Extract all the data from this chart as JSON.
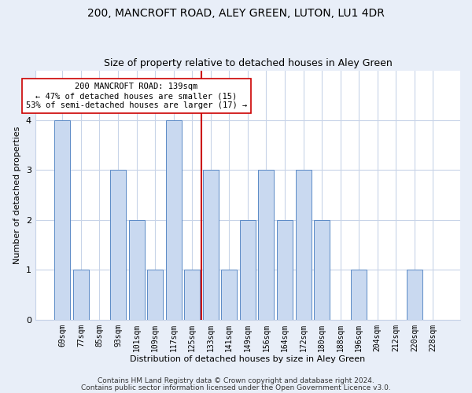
{
  "title": "200, MANCROFT ROAD, ALEY GREEN, LUTON, LU1 4DR",
  "subtitle": "Size of property relative to detached houses in Aley Green",
  "xlabel": "Distribution of detached houses by size in Aley Green",
  "ylabel": "Number of detached properties",
  "categories": [
    "69sqm",
    "77sqm",
    "85sqm",
    "93sqm",
    "101sqm",
    "109sqm",
    "117sqm",
    "125sqm",
    "133sqm",
    "141sqm",
    "149sqm",
    "156sqm",
    "164sqm",
    "172sqm",
    "180sqm",
    "188sqm",
    "196sqm",
    "204sqm",
    "212sqm",
    "220sqm",
    "228sqm"
  ],
  "values": [
    4,
    1,
    0,
    3,
    2,
    1,
    4,
    1,
    3,
    1,
    2,
    3,
    2,
    3,
    2,
    0,
    1,
    0,
    0,
    1,
    0
  ],
  "bar_color": "#c9d9f0",
  "bar_edge_color": "#5b8ac6",
  "vline_pos": 7.5,
  "vline_color": "#cc0000",
  "annotation_text": "200 MANCROFT ROAD: 139sqm\n← 47% of detached houses are smaller (15)\n53% of semi-detached houses are larger (17) →",
  "annotation_box_color": "#ffffff",
  "annotation_box_edge": "#cc0000",
  "ylim": [
    0,
    5
  ],
  "yticks": [
    0,
    1,
    2,
    3,
    4
  ],
  "footer1": "Contains HM Land Registry data © Crown copyright and database right 2024.",
  "footer2": "Contains public sector information licensed under the Open Government Licence v3.0.",
  "bg_color": "#e8eef8",
  "plot_bg_color": "#ffffff",
  "grid_color": "#c8d4e8",
  "title_fontsize": 10,
  "subtitle_fontsize": 9,
  "axis_label_fontsize": 8,
  "tick_fontsize": 7,
  "footer_fontsize": 6.5
}
